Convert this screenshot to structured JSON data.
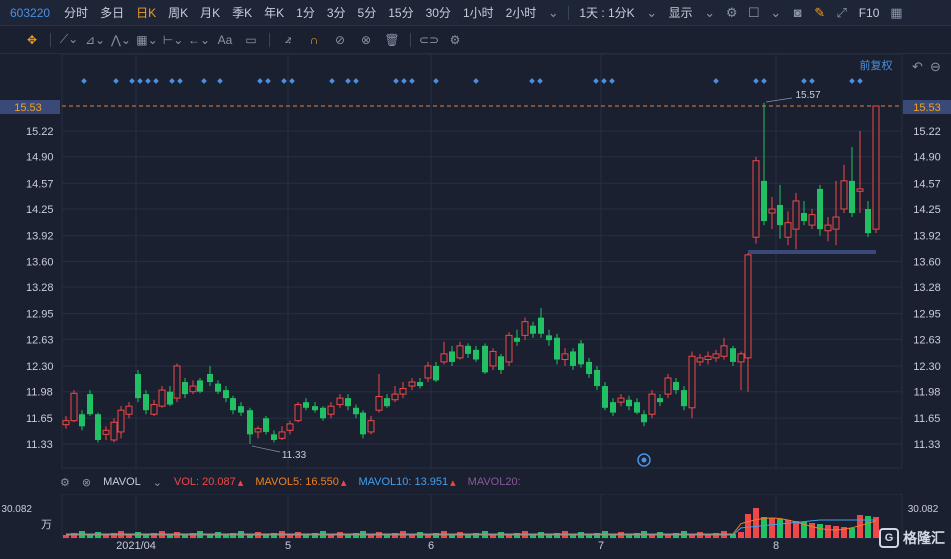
{
  "header": {
    "code": "603220",
    "timeframes": [
      "分时",
      "多日",
      "日K",
      "周K",
      "月K",
      "季K",
      "年K",
      "1分",
      "3分",
      "5分",
      "15分",
      "30分",
      "1小时",
      "2小时"
    ],
    "active_timeframe": "日K",
    "combo_label": "1天 : 1分K",
    "display_label": "显示",
    "f10_label": "F10"
  },
  "toolbar": {
    "text_tool_label": "Aa"
  },
  "chart": {
    "adjust_label": "前复权",
    "price_ticks": [
      "15.22",
      "14.90",
      "14.57",
      "14.25",
      "13.92",
      "13.60",
      "13.28",
      "12.95",
      "12.63",
      "12.30",
      "11.98",
      "11.65",
      "11.33"
    ],
    "current_price": "15.53",
    "high_label": "15.57",
    "low_label": "11.33",
    "date_labels": [
      "2021/04",
      "5",
      "6",
      "7",
      "8"
    ],
    "colors": {
      "up": "#f04848",
      "down": "#22c064",
      "grid": "#262e42",
      "price_line": "#e08040"
    }
  },
  "volume": {
    "indicator": "MAVOL",
    "vol": "VOL: 20.087",
    "mavol5": "MAVOL5: 16.550",
    "mavol10": "MAVOL10: 13.951",
    "mavol20": "MAVOL20:",
    "axis_top": "30.082",
    "axis_unit": "万"
  },
  "watermark": {
    "text": "格隆汇"
  }
}
